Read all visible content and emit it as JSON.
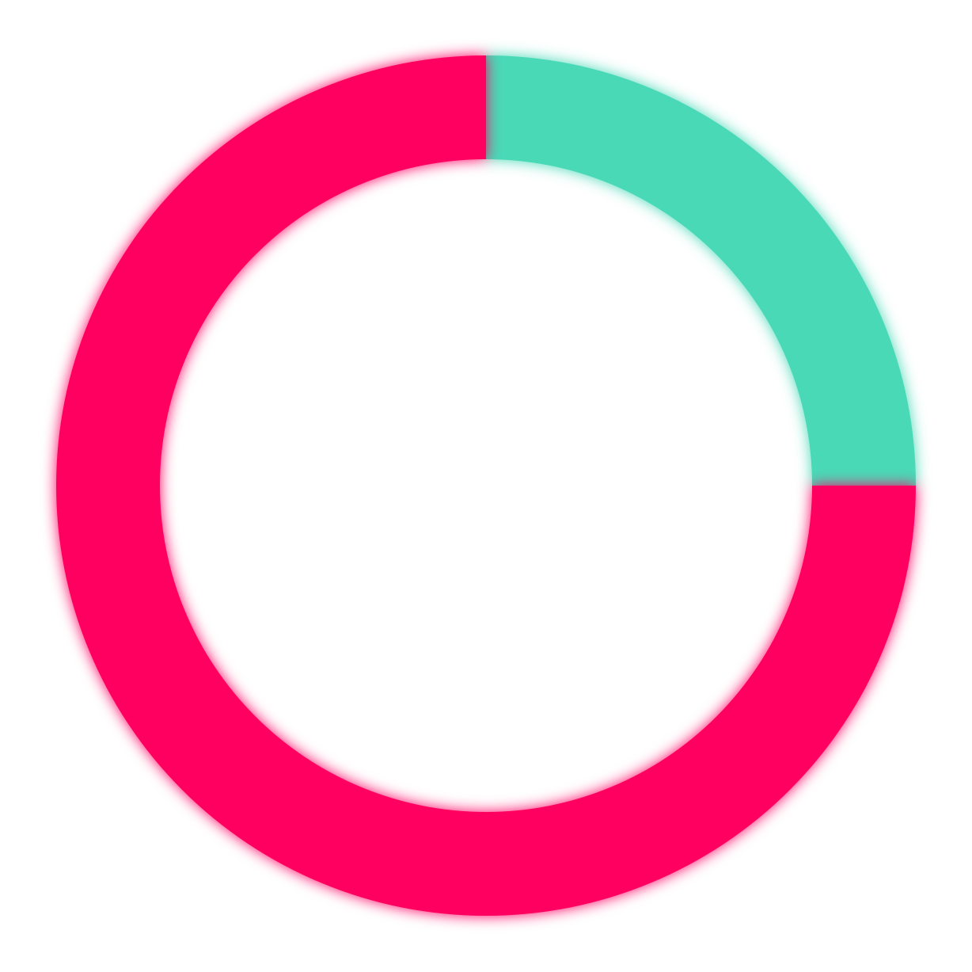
{
  "chart_data": {
    "type": "pie",
    "variant": "donut",
    "start": "top",
    "direction": "clockwise",
    "glow": true,
    "slices": [
      {
        "value": 25,
        "color": "#4ad9b7"
      },
      {
        "value": 75,
        "color": "#ff0060"
      }
    ]
  }
}
